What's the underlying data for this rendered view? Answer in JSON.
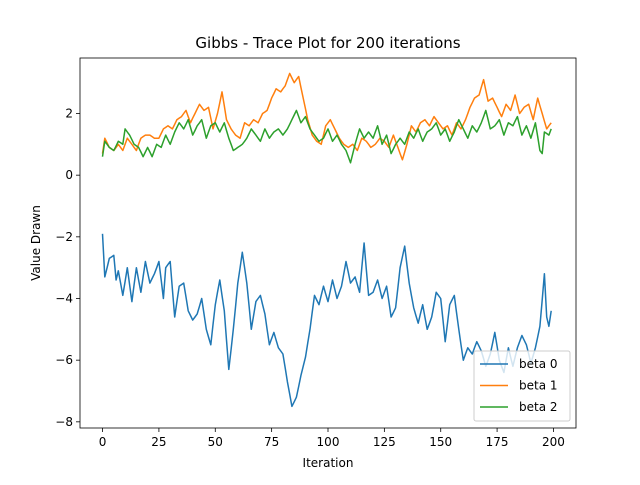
{
  "chart_data": {
    "type": "line",
    "title": "Gibbs - Trace Plot for 200 iterations",
    "xlabel": "Iteration",
    "ylabel": "Value Drawn",
    "xlim": [
      -10,
      210
    ],
    "ylim": [
      -8.2,
      3.8
    ],
    "xticks": [
      0,
      25,
      50,
      75,
      100,
      125,
      150,
      175,
      200
    ],
    "yticks": [
      -8,
      -6,
      -4,
      -2,
      0,
      2
    ],
    "grid": false,
    "legend_position": "lower-right",
    "colors": {
      "beta 0": "#1f77b4",
      "beta 1": "#ff7f0e",
      "beta 2": "#2ca02c"
    },
    "series": [
      {
        "name": "beta 0",
        "knots": [
          [
            0,
            -1.9
          ],
          [
            1,
            -3.3
          ],
          [
            3,
            -2.7
          ],
          [
            5,
            -2.6
          ],
          [
            6,
            -3.4
          ],
          [
            7,
            -3.1
          ],
          [
            9,
            -3.9
          ],
          [
            11,
            -3.0
          ],
          [
            13,
            -4.1
          ],
          [
            15,
            -3.0
          ],
          [
            17,
            -3.8
          ],
          [
            19,
            -2.8
          ],
          [
            21,
            -3.5
          ],
          [
            23,
            -3.2
          ],
          [
            25,
            -2.8
          ],
          [
            27,
            -4.0
          ],
          [
            28,
            -3.0
          ],
          [
            30,
            -2.8
          ],
          [
            32,
            -4.6
          ],
          [
            34,
            -3.6
          ],
          [
            36,
            -3.5
          ],
          [
            38,
            -4.4
          ],
          [
            40,
            -4.7
          ],
          [
            42,
            -4.5
          ],
          [
            44,
            -4.0
          ],
          [
            46,
            -5.0
          ],
          [
            48,
            -5.5
          ],
          [
            50,
            -4.2
          ],
          [
            52,
            -3.4
          ],
          [
            54,
            -4.4
          ],
          [
            56,
            -6.3
          ],
          [
            58,
            -5.0
          ],
          [
            60,
            -3.5
          ],
          [
            62,
            -2.5
          ],
          [
            64,
            -3.5
          ],
          [
            66,
            -5.0
          ],
          [
            68,
            -4.1
          ],
          [
            70,
            -3.9
          ],
          [
            72,
            -4.5
          ],
          [
            74,
            -5.5
          ],
          [
            76,
            -5.1
          ],
          [
            78,
            -5.6
          ],
          [
            80,
            -5.8
          ],
          [
            82,
            -6.7
          ],
          [
            84,
            -7.5
          ],
          [
            86,
            -7.2
          ],
          [
            88,
            -6.5
          ],
          [
            90,
            -5.9
          ],
          [
            92,
            -5.0
          ],
          [
            94,
            -3.9
          ],
          [
            96,
            -4.2
          ],
          [
            98,
            -3.6
          ],
          [
            100,
            -4.1
          ],
          [
            102,
            -3.4
          ],
          [
            104,
            -4.0
          ],
          [
            106,
            -3.6
          ],
          [
            108,
            -2.8
          ],
          [
            110,
            -3.5
          ],
          [
            112,
            -3.3
          ],
          [
            114,
            -3.8
          ],
          [
            116,
            -2.2
          ],
          [
            118,
            -3.9
          ],
          [
            120,
            -3.8
          ],
          [
            122,
            -3.4
          ],
          [
            124,
            -4.0
          ],
          [
            126,
            -3.6
          ],
          [
            128,
            -4.6
          ],
          [
            130,
            -4.3
          ],
          [
            132,
            -3.0
          ],
          [
            134,
            -2.3
          ],
          [
            136,
            -3.5
          ],
          [
            138,
            -4.3
          ],
          [
            140,
            -4.8
          ],
          [
            142,
            -4.2
          ],
          [
            144,
            -5.0
          ],
          [
            146,
            -4.6
          ],
          [
            148,
            -3.8
          ],
          [
            150,
            -4.0
          ],
          [
            152,
            -5.4
          ],
          [
            154,
            -4.2
          ],
          [
            156,
            -3.9
          ],
          [
            158,
            -5.0
          ],
          [
            160,
            -6.0
          ],
          [
            162,
            -5.6
          ],
          [
            164,
            -5.8
          ],
          [
            166,
            -5.4
          ],
          [
            168,
            -5.7
          ],
          [
            170,
            -6.2
          ],
          [
            172,
            -5.8
          ],
          [
            174,
            -5.1
          ],
          [
            176,
            -6.0
          ],
          [
            178,
            -6.4
          ],
          [
            180,
            -5.6
          ],
          [
            182,
            -6.2
          ],
          [
            184,
            -5.6
          ],
          [
            186,
            -5.2
          ],
          [
            188,
            -5.5
          ],
          [
            190,
            -6.1
          ],
          [
            192,
            -5.6
          ],
          [
            194,
            -4.9
          ],
          [
            196,
            -3.2
          ],
          [
            197,
            -4.6
          ],
          [
            198,
            -4.9
          ],
          [
            199,
            -4.4
          ]
        ]
      },
      {
        "name": "beta 1",
        "knots": [
          [
            0,
            0.7
          ],
          [
            1,
            1.2
          ],
          [
            3,
            0.9
          ],
          [
            5,
            0.8
          ],
          [
            7,
            1.0
          ],
          [
            9,
            0.8
          ],
          [
            11,
            1.2
          ],
          [
            13,
            1.0
          ],
          [
            15,
            0.8
          ],
          [
            17,
            1.2
          ],
          [
            19,
            1.3
          ],
          [
            21,
            1.3
          ],
          [
            23,
            1.2
          ],
          [
            25,
            1.2
          ],
          [
            27,
            1.5
          ],
          [
            29,
            1.6
          ],
          [
            31,
            1.5
          ],
          [
            33,
            1.8
          ],
          [
            35,
            1.9
          ],
          [
            37,
            2.1
          ],
          [
            39,
            1.7
          ],
          [
            41,
            2.0
          ],
          [
            43,
            2.3
          ],
          [
            45,
            2.1
          ],
          [
            47,
            2.2
          ],
          [
            49,
            1.5
          ],
          [
            51,
            2.0
          ],
          [
            53,
            2.7
          ],
          [
            55,
            1.8
          ],
          [
            57,
            1.5
          ],
          [
            59,
            1.3
          ],
          [
            61,
            1.2
          ],
          [
            63,
            1.7
          ],
          [
            65,
            1.6
          ],
          [
            67,
            1.8
          ],
          [
            69,
            1.7
          ],
          [
            71,
            2.0
          ],
          [
            73,
            2.1
          ],
          [
            75,
            2.5
          ],
          [
            77,
            2.8
          ],
          [
            79,
            2.7
          ],
          [
            81,
            2.9
          ],
          [
            83,
            3.3
          ],
          [
            85,
            3.0
          ],
          [
            87,
            3.2
          ],
          [
            89,
            2.5
          ],
          [
            91,
            1.8
          ],
          [
            93,
            1.3
          ],
          [
            95,
            1.1
          ],
          [
            97,
            1.0
          ],
          [
            99,
            1.6
          ],
          [
            101,
            1.8
          ],
          [
            103,
            1.5
          ],
          [
            105,
            1.2
          ],
          [
            107,
            1.0
          ],
          [
            109,
            0.9
          ],
          [
            111,
            1.0
          ],
          [
            113,
            0.8
          ],
          [
            115,
            1.2
          ],
          [
            117,
            1.1
          ],
          [
            119,
            0.9
          ],
          [
            121,
            1.0
          ],
          [
            123,
            1.2
          ],
          [
            125,
            1.1
          ],
          [
            127,
            0.9
          ],
          [
            129,
            1.3
          ],
          [
            131,
            0.9
          ],
          [
            133,
            0.5
          ],
          [
            135,
            1.0
          ],
          [
            137,
            1.6
          ],
          [
            139,
            1.4
          ],
          [
            141,
            1.7
          ],
          [
            143,
            1.8
          ],
          [
            145,
            1.6
          ],
          [
            147,
            1.9
          ],
          [
            149,
            1.7
          ],
          [
            151,
            1.5
          ],
          [
            153,
            1.6
          ],
          [
            155,
            1.3
          ],
          [
            157,
            1.7
          ],
          [
            159,
            1.5
          ],
          [
            161,
            1.8
          ],
          [
            163,
            2.2
          ],
          [
            165,
            2.5
          ],
          [
            167,
            2.6
          ],
          [
            169,
            3.1
          ],
          [
            171,
            2.4
          ],
          [
            173,
            2.5
          ],
          [
            175,
            2.2
          ],
          [
            177,
            1.9
          ],
          [
            179,
            2.3
          ],
          [
            181,
            2.1
          ],
          [
            183,
            2.6
          ],
          [
            185,
            2.0
          ],
          [
            187,
            2.2
          ],
          [
            189,
            2.3
          ],
          [
            191,
            1.8
          ],
          [
            193,
            2.5
          ],
          [
            195,
            2.0
          ],
          [
            197,
            1.5
          ],
          [
            199,
            1.7
          ]
        ]
      },
      {
        "name": "beta 2",
        "knots": [
          [
            0,
            0.6
          ],
          [
            1,
            1.1
          ],
          [
            3,
            0.9
          ],
          [
            5,
            0.8
          ],
          [
            7,
            1.1
          ],
          [
            9,
            1.0
          ],
          [
            10,
            1.5
          ],
          [
            12,
            1.3
          ],
          [
            14,
            1.0
          ],
          [
            16,
            0.9
          ],
          [
            18,
            0.6
          ],
          [
            20,
            0.9
          ],
          [
            22,
            0.6
          ],
          [
            24,
            1.0
          ],
          [
            26,
            0.9
          ],
          [
            28,
            1.3
          ],
          [
            30,
            1.0
          ],
          [
            32,
            1.4
          ],
          [
            34,
            1.7
          ],
          [
            36,
            1.5
          ],
          [
            38,
            1.8
          ],
          [
            40,
            1.3
          ],
          [
            42,
            1.6
          ],
          [
            44,
            1.8
          ],
          [
            46,
            1.2
          ],
          [
            48,
            1.6
          ],
          [
            50,
            1.7
          ],
          [
            52,
            1.4
          ],
          [
            54,
            1.7
          ],
          [
            56,
            1.2
          ],
          [
            58,
            0.8
          ],
          [
            60,
            0.9
          ],
          [
            62,
            1.0
          ],
          [
            64,
            1.2
          ],
          [
            66,
            1.5
          ],
          [
            68,
            1.3
          ],
          [
            70,
            1.1
          ],
          [
            72,
            1.5
          ],
          [
            74,
            1.2
          ],
          [
            76,
            1.4
          ],
          [
            78,
            1.5
          ],
          [
            80,
            1.3
          ],
          [
            82,
            1.5
          ],
          [
            84,
            1.8
          ],
          [
            86,
            2.1
          ],
          [
            88,
            1.7
          ],
          [
            90,
            1.9
          ],
          [
            92,
            1.5
          ],
          [
            94,
            1.3
          ],
          [
            96,
            1.1
          ],
          [
            98,
            1.2
          ],
          [
            100,
            1.5
          ],
          [
            102,
            1.1
          ],
          [
            104,
            1.3
          ],
          [
            106,
            1.0
          ],
          [
            108,
            0.8
          ],
          [
            110,
            0.4
          ],
          [
            112,
            1.0
          ],
          [
            114,
            1.5
          ],
          [
            116,
            1.2
          ],
          [
            118,
            1.4
          ],
          [
            120,
            1.2
          ],
          [
            122,
            1.6
          ],
          [
            124,
            1.0
          ],
          [
            126,
            1.3
          ],
          [
            128,
            0.7
          ],
          [
            130,
            1.0
          ],
          [
            132,
            1.2
          ],
          [
            134,
            1.0
          ],
          [
            136,
            1.4
          ],
          [
            138,
            1.2
          ],
          [
            140,
            1.5
          ],
          [
            142,
            1.1
          ],
          [
            144,
            1.4
          ],
          [
            146,
            1.5
          ],
          [
            148,
            1.7
          ],
          [
            150,
            1.3
          ],
          [
            152,
            1.5
          ],
          [
            154,
            1.1
          ],
          [
            156,
            1.4
          ],
          [
            158,
            1.8
          ],
          [
            160,
            1.5
          ],
          [
            162,
            1.2
          ],
          [
            164,
            1.6
          ],
          [
            166,
            1.4
          ],
          [
            168,
            1.7
          ],
          [
            170,
            2.1
          ],
          [
            172,
            1.5
          ],
          [
            174,
            1.6
          ],
          [
            176,
            1.8
          ],
          [
            178,
            1.3
          ],
          [
            180,
            1.7
          ],
          [
            182,
            1.6
          ],
          [
            184,
            1.9
          ],
          [
            186,
            1.3
          ],
          [
            188,
            1.6
          ],
          [
            190,
            1.2
          ],
          [
            192,
            1.7
          ],
          [
            194,
            0.8
          ],
          [
            195,
            0.7
          ],
          [
            196,
            1.4
          ],
          [
            198,
            1.3
          ],
          [
            199,
            1.5
          ]
        ]
      }
    ]
  }
}
